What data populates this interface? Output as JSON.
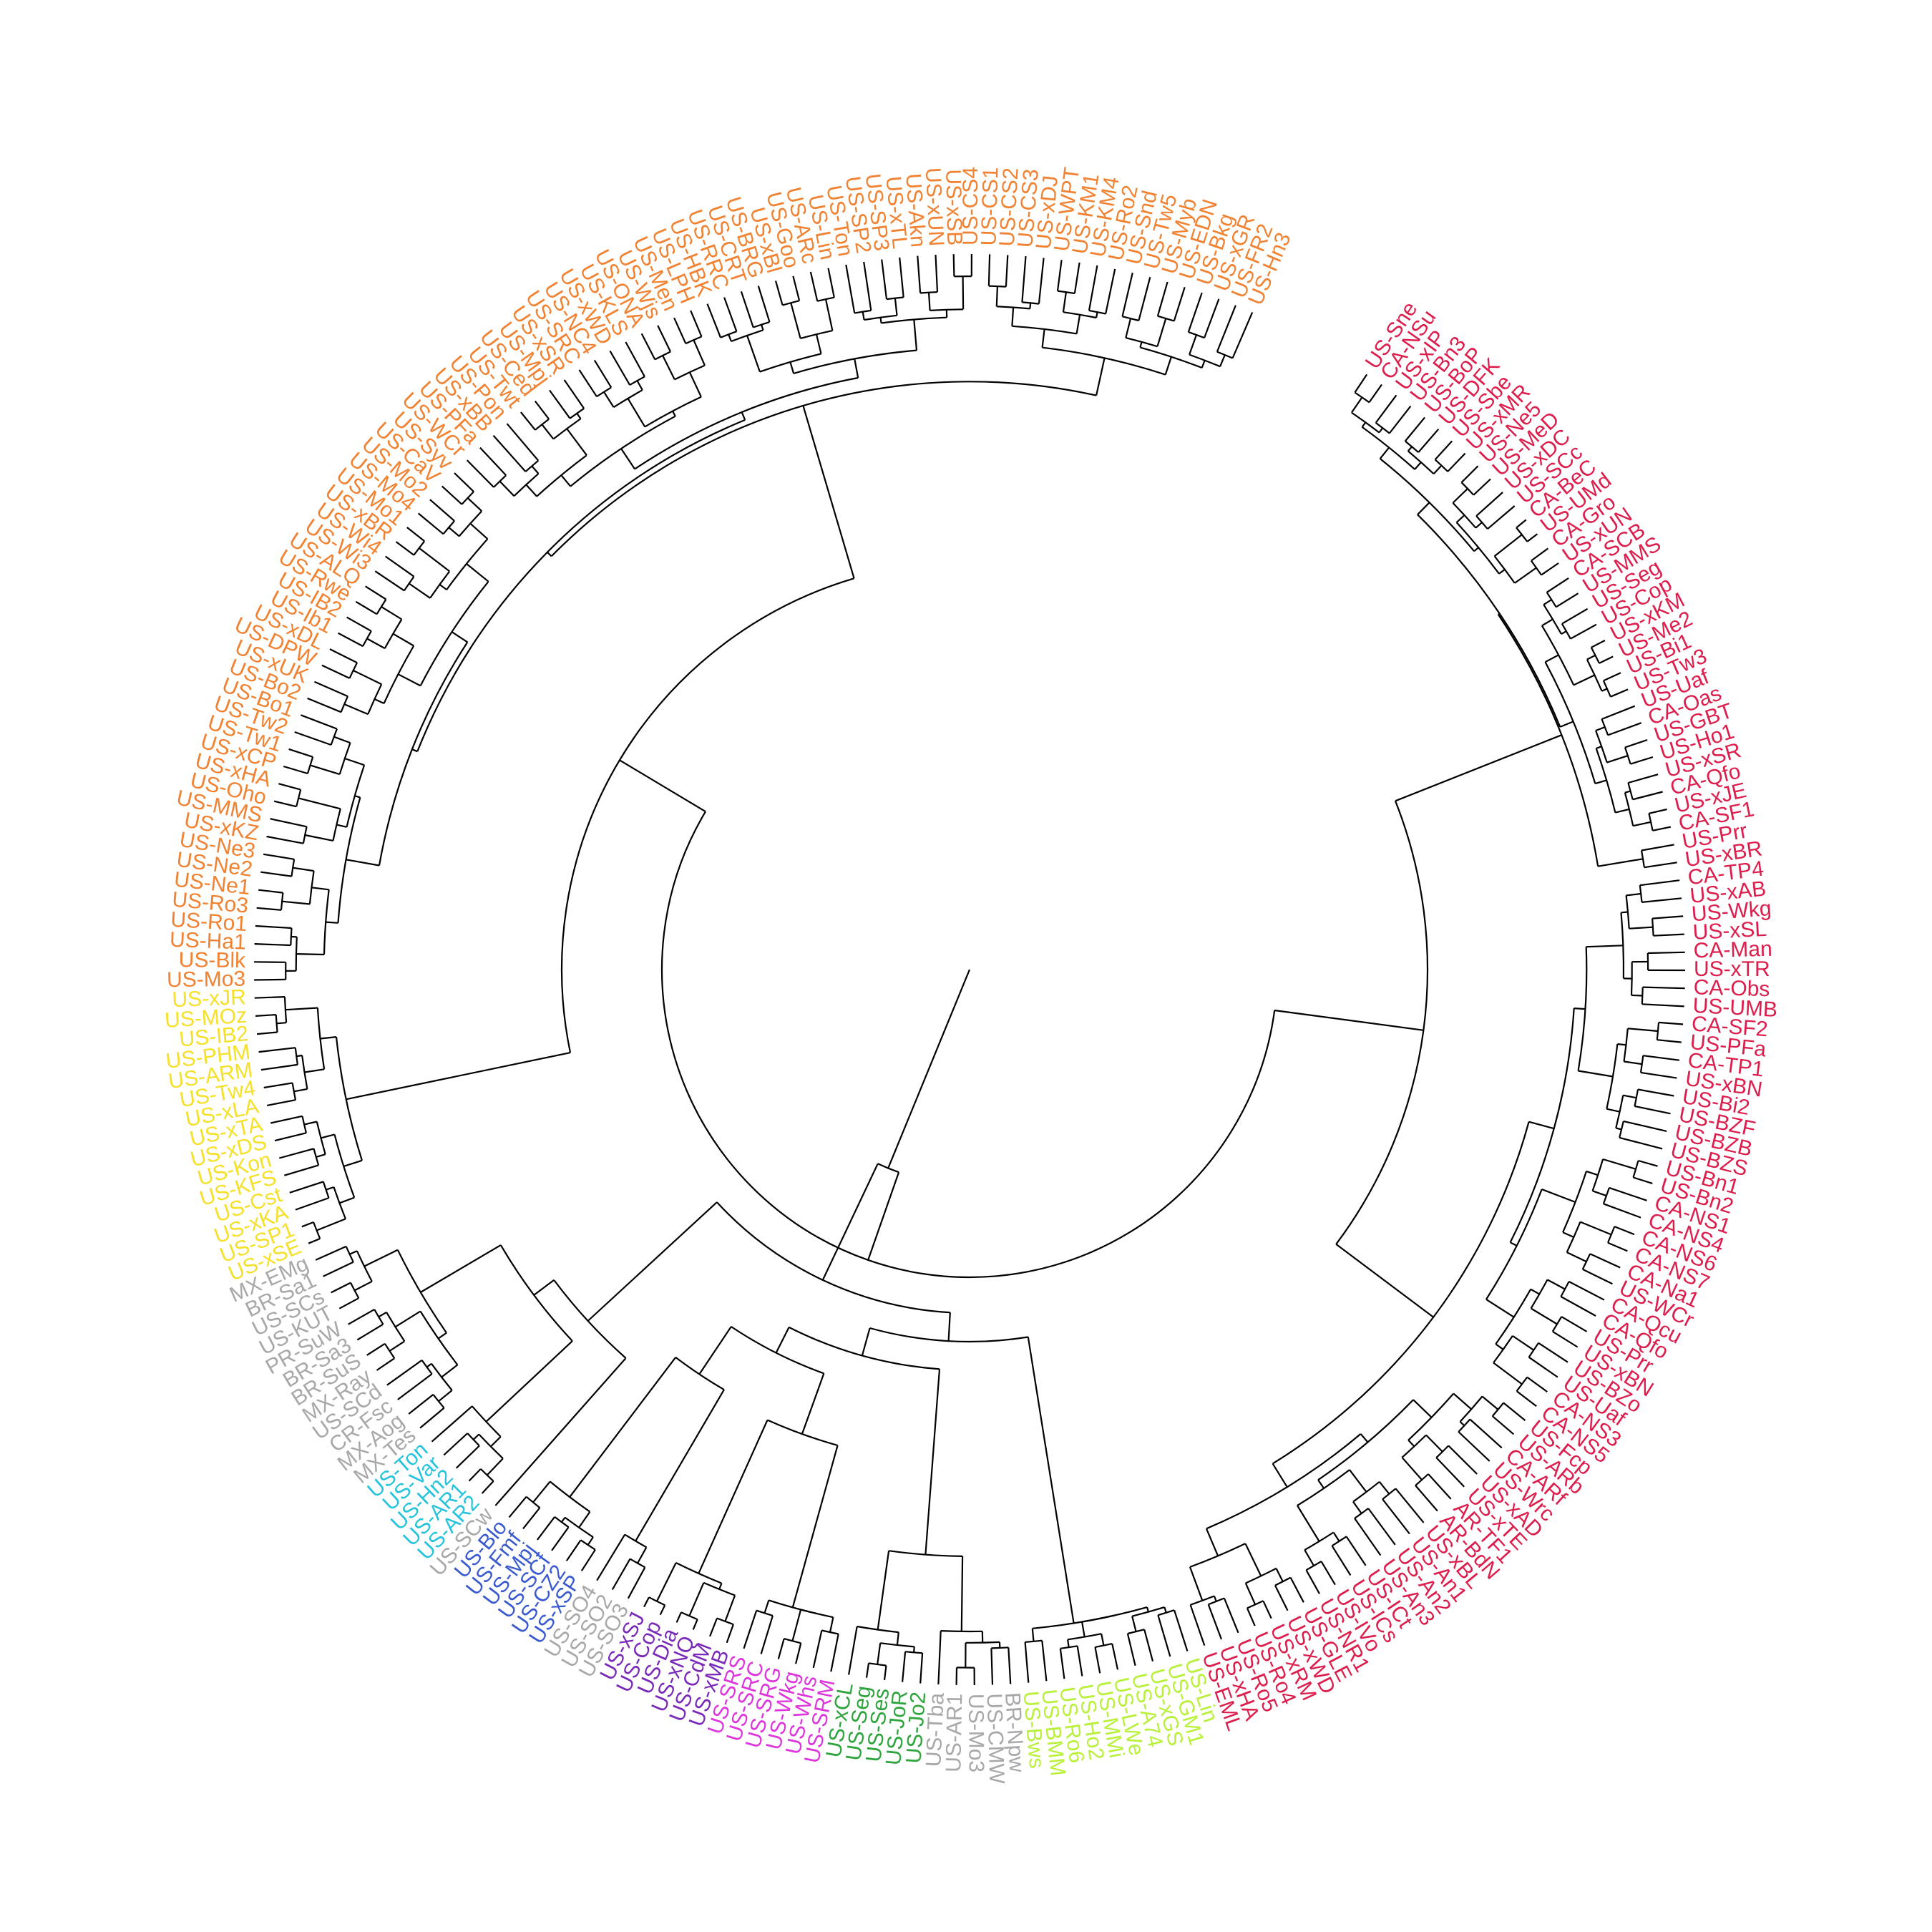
{
  "palette": {
    "crimson": "#dc1e4d",
    "lime": "#b8f03a",
    "gray": "#a8a8a8",
    "green": "#2ea43c",
    "magenta": "#dd36dd",
    "purple": "#7a2ab8",
    "blue": "#3a5ad0",
    "cyan": "#26c4dc",
    "yellow": "#f5e02a",
    "orange": "#f08232",
    "branch": "#000000"
  },
  "clades": [
    {
      "id": "crimson-top",
      "color": "crimson",
      "labels": [
        "US-Sne",
        "CA-NSu",
        "US-xIP",
        "US-Bn3",
        "US-BoP",
        "US-DFK",
        "US-Sbe",
        "US-xMR",
        "US-Ne5",
        "US-MeD",
        "US-xDC",
        "US-SCc",
        "CA-BeC",
        "US-UMd",
        "CA-Gro",
        "US-xUN",
        "CA-SCB",
        "US-MMS",
        "US-Seg",
        "US-Cop",
        "US-xKM",
        "US-Me2",
        "US-Bi1",
        "US-Tw3",
        "US-Uaf",
        "CA-Oas",
        "US-GBT",
        "US-Ho1",
        "US-xSR",
        "CA-Qfo",
        "US-xJE",
        "CA-SF1",
        "US-Prr",
        "US-xBR"
      ]
    },
    {
      "id": "crimson-left",
      "color": "crimson",
      "labels": [
        "CA-TP4",
        "US-xAB",
        "US-Wkg",
        "US-xSL",
        "CA-Man",
        "US-xTR",
        "CA-Obs",
        "US-UMB",
        "CA-SF2",
        "US-PFa",
        "CA-TP1",
        "US-xBN",
        "US-Bi2",
        "US-BZF",
        "US-BZB",
        "US-BZS",
        "US-Bn1",
        "US-Bn2",
        "CA-NS1",
        "CA-NS4",
        "CA-NS6",
        "CA-NS7",
        "CA-Na1",
        "US-WCr",
        "CA-Qcu",
        "CA-Qfo",
        "US-Prr",
        "US-xBN",
        "US-BZo",
        "US-Uaf",
        "CA-NS3",
        "CA-NS5",
        "US-Fcp",
        "US-ARb",
        "CA-ARf",
        "US-Wrc",
        "US-xAD",
        "US-xTE",
        "AR-TF1",
        "AR-BdN",
        "US-xBL",
        "US-An1",
        "US-An2",
        "US-An3",
        "US-ICt",
        "US-ICs",
        "US-IVo",
        "US-NR1",
        "US-GLE",
        "US-xWD",
        "US-xRM",
        "US-Ro4",
        "US-Ro5",
        "US-xHA",
        "US-EML"
      ]
    },
    {
      "id": "lime",
      "color": "lime",
      "labels": [
        "US-Lin",
        "US-GM1",
        "US-xGS",
        "US-A74",
        "US-LWe",
        "US-MMi",
        "US-Ho2",
        "US-Ro6",
        "US-BMM",
        "US-Bws"
      ]
    },
    {
      "id": "gray-1",
      "color": "gray",
      "labels": [
        "BR-Npw",
        "US-CMW",
        "US-Mo3",
        "US-AR1",
        "US-Tba"
      ]
    },
    {
      "id": "green",
      "color": "green",
      "labels": [
        "US-Jo2",
        "US-JoR",
        "US-Ses",
        "US-Seg",
        "US-xCL"
      ]
    },
    {
      "id": "magenta",
      "color": "magenta",
      "labels": [
        "US-SRM",
        "US-Whs",
        "US-Wkg",
        "US-SRG",
        "US-SRC",
        "US-SRS"
      ]
    },
    {
      "id": "purple",
      "color": "purple",
      "labels": [
        "US-xMB",
        "US-CdM",
        "US-xNQ",
        "US-Dia",
        "US-Cop",
        "US-xSJ"
      ]
    },
    {
      "id": "gray-2",
      "color": "gray",
      "labels": [
        "US-SO3",
        "US-SO2",
        "US-SO4"
      ]
    },
    {
      "id": "blue",
      "color": "blue",
      "labels": [
        "US-xSP",
        "US-CZ2",
        "US-SCf",
        "US-Mpj",
        "US-Fmf",
        "US-Blo"
      ]
    },
    {
      "id": "gray-3",
      "color": "gray",
      "labels": [
        "US-SCw"
      ]
    },
    {
      "id": "cyan",
      "color": "cyan",
      "labels": [
        "US-AR2",
        "US-AR1",
        "US-Hn2",
        "US-Var",
        "US-Ton"
      ]
    },
    {
      "id": "gray-4",
      "color": "gray",
      "labels": [
        "MX-Tes",
        "MX-Aog",
        "CR-Fsc",
        "US-SCd",
        "MX-Ray",
        "BR-SuS",
        "BR-Sa3",
        "PR-SuW",
        "US-KUT",
        "US-SCs",
        "BR-Sa1",
        "MX-EMg"
      ]
    },
    {
      "id": "yellow",
      "color": "yellow",
      "labels": [
        "US-xSE",
        "US-SP1",
        "US-xKA",
        "US-Cst",
        "US-KFS",
        "US-Kon",
        "US-xDS",
        "US-xTA",
        "US-xLA",
        "US-Tw4",
        "US-ARM",
        "US-PHM",
        "US-IB2",
        "US-MOz",
        "US-xJR"
      ]
    },
    {
      "id": "orange",
      "color": "orange",
      "labels": [
        "US-Mo3",
        "US-Blk",
        "US-Ha1",
        "US-Ro1",
        "US-Ro3",
        "US-Ne1",
        "US-Ne2",
        "US-Ne3",
        "US-xKZ",
        "US-MMS",
        "US-Oho",
        "US-xHA",
        "US-xCP",
        "US-Tw1",
        "US-Tw2",
        "US-Bo1",
        "US-Bo2",
        "US-xUK",
        "US-DPW",
        "US-xDL",
        "US-Ib1",
        "US-IB2",
        "US-Rwe",
        "US-ALQ",
        "US-Wi3",
        "US-Wi4",
        "US-xBR",
        "US-Mo1",
        "US-Mo4",
        "US-Mo2",
        "US-CaV",
        "US-Syv",
        "US-WCr",
        "US-PFa",
        "US-xBB",
        "US-Pon",
        "US-Twt",
        "US-Ced",
        "US-Mpj",
        "US-xSR",
        "US-SRC",
        "US-NC4",
        "US-xWD",
        "US-KLS",
        "US-ONA",
        "US-Wjs",
        "US-Men",
        "US-LPH",
        "US-HBK",
        "US-RRC",
        "US-CRT",
        "US-BRG",
        "US-xBl",
        "US-Goo",
        "US-ARc",
        "US-Lin",
        "US-Ton",
        "US-SP2",
        "US-SP3",
        "US-xTL",
        "US-Akn",
        "US-xUN",
        "US-xSB",
        "US-CS4",
        "US-CS1",
        "US-CS2",
        "US-CS3",
        "US-xDJ",
        "US-WPT",
        "US-KM1",
        "US-KM4",
        "US-Ro2",
        "US-Snd",
        "US-Tw5",
        "US-Myb",
        "US-EDN",
        "US-Bkg",
        "US-xGR",
        "US-FR2",
        "US-Hn3"
      ]
    }
  ]
}
